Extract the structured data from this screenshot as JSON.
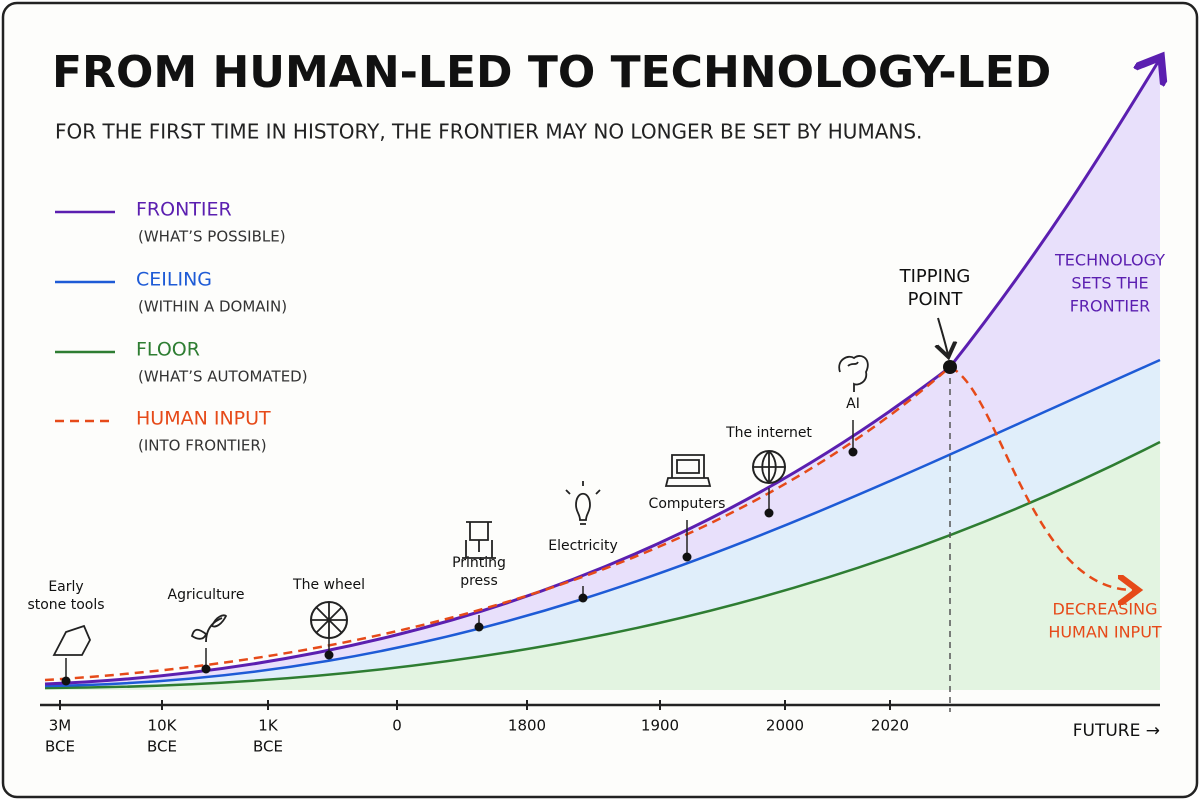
{
  "title": "FROM HUMAN-LED TO TECHNOLOGY-LED",
  "subtitle": "FOR THE FIRST TIME IN HISTORY, THE FRONTIER MAY NO LONGER BE SET BY HUMANS.",
  "legend": [
    {
      "label": "FRONTIER",
      "note": "(WHAT’S POSSIBLE)"
    },
    {
      "label": "CEILING",
      "note": "(WITHIN A DOMAIN)"
    },
    {
      "label": "FLOOR",
      "note": "(WHAT’S AUTOMATED)"
    },
    {
      "label": "HUMAN INPUT",
      "note": "(INTO FRONTIER)"
    }
  ],
  "milestones": [
    {
      "label": [
        "Early",
        "stone tools"
      ]
    },
    {
      "label": [
        "Agriculture"
      ]
    },
    {
      "label": [
        "The wheel"
      ]
    },
    {
      "label": [
        "Printing",
        "press"
      ]
    },
    {
      "label": [
        "Electricity"
      ]
    },
    {
      "label": [
        "Computers"
      ]
    },
    {
      "label": [
        "The internet"
      ]
    },
    {
      "label": [
        "AI"
      ]
    }
  ],
  "axis_labels": [
    [
      "3M",
      "BCE"
    ],
    [
      "10K",
      "BCE"
    ],
    [
      "1K",
      "BCE"
    ],
    [
      "0"
    ],
    [
      "1800"
    ],
    [
      "1900"
    ],
    [
      "2000"
    ],
    [
      "2020"
    ]
  ],
  "future_label": "FUTURE →",
  "annotations": {
    "tipping_point": [
      "TIPPING",
      "POINT"
    ],
    "technology": [
      "TECHNOLOGY",
      "SETS THE",
      "FRONTIER"
    ],
    "decreasing": [
      "DECREASING",
      "HUMAN INPUT"
    ]
  }
}
